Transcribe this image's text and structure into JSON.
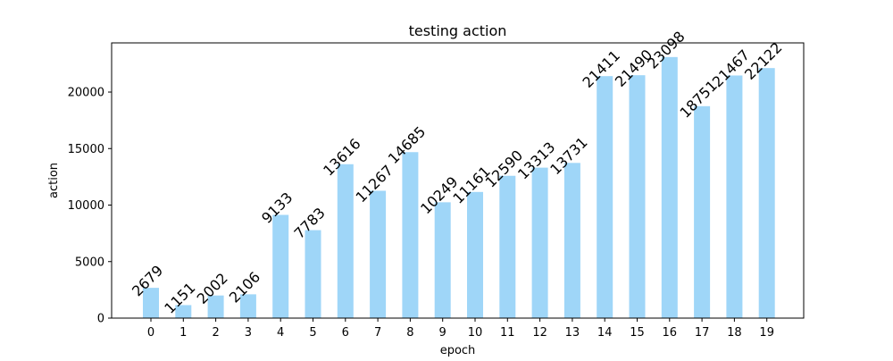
{
  "chart_data": {
    "type": "bar",
    "title": "testing action",
    "xlabel": "epoch",
    "ylabel": "action",
    "categories": [
      "0",
      "1",
      "2",
      "3",
      "4",
      "5",
      "6",
      "7",
      "8",
      "9",
      "10",
      "11",
      "12",
      "13",
      "14",
      "15",
      "16",
      "17",
      "18",
      "19"
    ],
    "values": [
      2679,
      1151,
      2002,
      2106,
      9133,
      7783,
      13616,
      11267,
      14685,
      10249,
      11161,
      12590,
      13313,
      13731,
      21411,
      21490,
      23098,
      18751,
      21467,
      22122
    ],
    "y_ticks": [
      0,
      5000,
      10000,
      15000,
      20000
    ],
    "ylim": [
      0,
      24350
    ],
    "grid": false,
    "legend": "none",
    "bar_color": "#9fd6f8",
    "data_labels_rotation": -45
  }
}
